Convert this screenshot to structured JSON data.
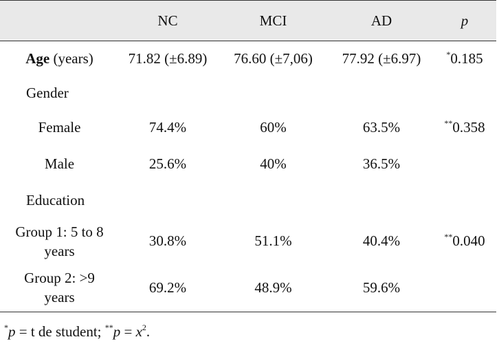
{
  "header": {
    "col_empty": "",
    "nc": "NC",
    "mci": "MCI",
    "ad": "AD",
    "p": "p"
  },
  "rows": {
    "age": {
      "label_bold": "Age",
      "label_rest": " (years)",
      "nc": "71.82 (±6.89)",
      "mci": "76.60 (±7,06)",
      "ad": "77.92 (±6.97)",
      "p_sup": "*",
      "p": "0.185"
    },
    "gender": {
      "label": "Gender"
    },
    "female": {
      "label": "Female",
      "nc": "74.4%",
      "mci": "60%",
      "ad": "63.5%",
      "p_sup": "**",
      "p": "0.358"
    },
    "male": {
      "label": "Male",
      "nc": "25.6%",
      "mci": "40%",
      "ad": "36.5%"
    },
    "education": {
      "label": "Education"
    },
    "group1": {
      "label_line1": "Group 1: 5 to 8",
      "label_line2": "years",
      "nc": "30.8%",
      "mci": "51.1%",
      "ad": "40.4%",
      "p_sup": "**",
      "p": "0.040"
    },
    "group2": {
      "label_line1": "Group 2: >9",
      "label_line2": "years",
      "nc": "69.2%",
      "mci": "48.9%",
      "ad": "59.6%"
    }
  },
  "footnote": {
    "sup1": "*",
    "p1": "p",
    "text1": " = t de student; ",
    "sup2": "**",
    "p2": "p",
    "text2": " = ",
    "x": "x",
    "exp": "2",
    "end": "."
  }
}
